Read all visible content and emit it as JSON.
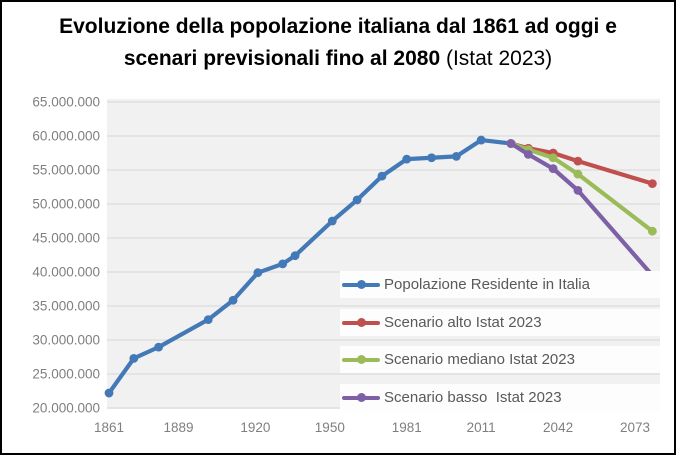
{
  "title": {
    "line1": "Evoluzione della popolazione italiana dal 1861 ad oggi e",
    "line2_bold": "scenari previsionali fino al 2080",
    "line2_suffix": " (Istat 2023)"
  },
  "colors": {
    "background": "#FFFFFF",
    "frame_border": "#000000",
    "plot_background": "#F1F1F1",
    "gridline": "#DCDCDC",
    "axis_label": "#7F7F7F",
    "legend_text": "#595959",
    "legend_row_background": "#FDFDFD",
    "title_text": "#000000"
  },
  "chart_data": {
    "type": "line",
    "title": "Evoluzione della popolazione italiana dal 1861 ad oggi e scenari previsionali fino al 2080 (Istat 2023)",
    "xlabel": "",
    "ylabel": "",
    "grid": "horizontal-only",
    "legend_position": "inside-lower-right",
    "x_axis": {
      "ticks": [
        1861,
        1889,
        1920,
        1950,
        1981,
        2011,
        2042,
        2073
      ],
      "range": [
        1858,
        2084
      ]
    },
    "y_axis": {
      "range": [
        20000000,
        65000000
      ],
      "tick_step": 5000000,
      "ticks": [
        {
          "value": 65000000,
          "label": "65.000.000"
        },
        {
          "value": 60000000,
          "label": "60.000.000"
        },
        {
          "value": 55000000,
          "label": "55.000.000"
        },
        {
          "value": 50000000,
          "label": "50.000.000"
        },
        {
          "value": 45000000,
          "label": "45.000.000"
        },
        {
          "value": 40000000,
          "label": "40.000.000"
        },
        {
          "value": 35000000,
          "label": "35.000.000"
        },
        {
          "value": 30000000,
          "label": "30.000.000"
        },
        {
          "value": 25000000,
          "label": "25.000.000"
        },
        {
          "value": 20000000,
          "label": "20.000.000"
        }
      ]
    },
    "series": [
      {
        "name": "Popolazione Residente in Italia",
        "color": "#4379B7",
        "points": [
          [
            1861,
            22200000
          ],
          [
            1871,
            27300000
          ],
          [
            1881,
            28950000
          ],
          [
            1901,
            33000000
          ],
          [
            1911,
            35850000
          ],
          [
            1921,
            39900000
          ],
          [
            1931,
            41200000
          ],
          [
            1936,
            42400000
          ],
          [
            1951,
            47500000
          ],
          [
            1961,
            50600000
          ],
          [
            1971,
            54100000
          ],
          [
            1981,
            56600000
          ],
          [
            1991,
            56800000
          ],
          [
            2001,
            57000000
          ],
          [
            2011,
            59400000
          ],
          [
            2023,
            58900000
          ]
        ]
      },
      {
        "name": "Scenario alto Istat 2023",
        "color": "#C0504D",
        "points": [
          [
            2023,
            58900000
          ],
          [
            2030,
            58200000
          ],
          [
            2040,
            57500000
          ],
          [
            2050,
            56300000
          ],
          [
            2080,
            53000000
          ]
        ]
      },
      {
        "name": "Scenario mediano Istat 2023",
        "color": "#9BBB59",
        "points": [
          [
            2023,
            58900000
          ],
          [
            2030,
            58000000
          ],
          [
            2040,
            56800000
          ],
          [
            2050,
            54400000
          ],
          [
            2080,
            46000000
          ]
        ]
      },
      {
        "name": "Scenario basso  Istat 2023",
        "color": "#7D60A5",
        "points": [
          [
            2023,
            58900000
          ],
          [
            2030,
            57300000
          ],
          [
            2040,
            55200000
          ],
          [
            2050,
            52000000
          ],
          [
            2080,
            39500000
          ]
        ]
      }
    ]
  }
}
